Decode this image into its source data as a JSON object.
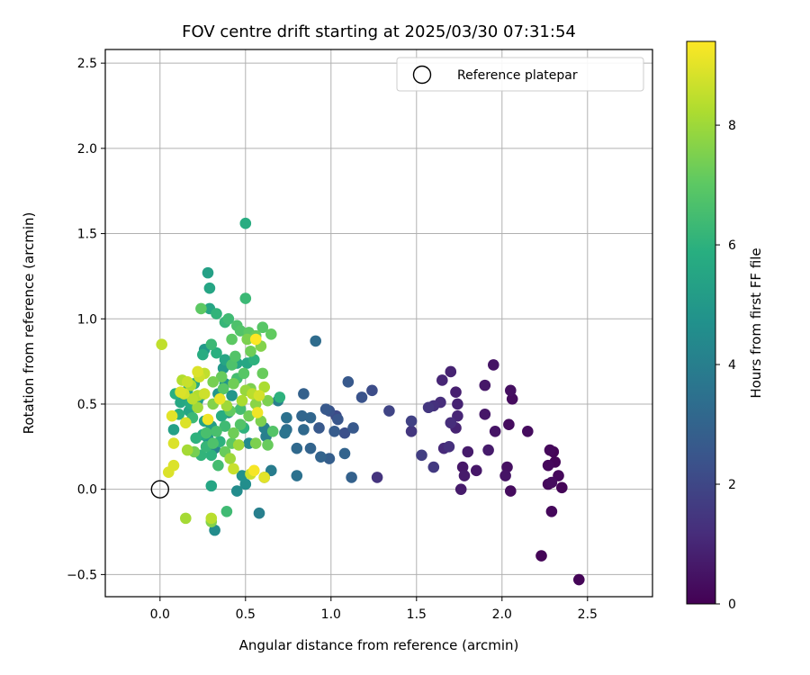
{
  "chart_data": {
    "type": "scatter",
    "title": "FOV centre drift starting at 2025/03/30 07:31:54",
    "xlabel": "Angular distance from reference (arcmin)",
    "ylabel": "Rotation from reference (arcmin)",
    "xlim": [
      -0.32,
      2.88
    ],
    "ylim": [
      -0.63,
      2.58
    ],
    "xticks": [
      "0.0",
      "0.5",
      "1.0",
      "1.5",
      "2.0",
      "2.5"
    ],
    "yticks": [
      "−0.5",
      "0.0",
      "0.5",
      "1.0",
      "1.5",
      "2.0",
      "2.5"
    ],
    "grid": true,
    "legend": {
      "placement": "top-right",
      "entries": [
        "Reference platepar"
      ]
    },
    "reference_point": {
      "x": 0.0,
      "y": 0.0
    },
    "colorbar": {
      "label": "Hours from first FF file",
      "colormap": "viridis",
      "range": [
        0,
        9.4
      ],
      "ticks": [
        "0",
        "2",
        "4",
        "6",
        "8"
      ]
    },
    "points": [
      [
        2.45,
        -0.53,
        0.1
      ],
      [
        2.23,
        -0.39,
        0.1
      ],
      [
        2.29,
        -0.13,
        0.2
      ],
      [
        2.35,
        0.01,
        0.1
      ],
      [
        2.33,
        0.08,
        0.2
      ],
      [
        2.29,
        0.04,
        0.3
      ],
      [
        2.27,
        0.03,
        0.2
      ],
      [
        2.31,
        0.16,
        0.1
      ],
      [
        2.27,
        0.14,
        0.2
      ],
      [
        2.3,
        0.22,
        0.1
      ],
      [
        2.28,
        0.23,
        0.2
      ],
      [
        2.05,
        -0.01,
        0.3
      ],
      [
        2.02,
        0.08,
        0.5
      ],
      [
        2.03,
        0.13,
        0.4
      ],
      [
        2.15,
        0.34,
        0.3
      ],
      [
        2.04,
        0.38,
        0.3
      ],
      [
        2.06,
        0.53,
        0.3
      ],
      [
        2.05,
        0.58,
        0.4
      ],
      [
        1.95,
        0.73,
        0.5
      ],
      [
        1.9,
        0.61,
        0.6
      ],
      [
        1.9,
        0.44,
        0.6
      ],
      [
        1.96,
        0.34,
        0.5
      ],
      [
        1.92,
        0.23,
        0.7
      ],
      [
        1.85,
        0.11,
        0.6
      ],
      [
        1.78,
        0.08,
        0.7
      ],
      [
        1.77,
        0.13,
        0.6
      ],
      [
        1.76,
        0.0,
        0.7
      ],
      [
        1.8,
        0.22,
        0.7
      ],
      [
        1.73,
        0.36,
        0.9
      ],
      [
        1.74,
        0.43,
        1.0
      ],
      [
        1.74,
        0.5,
        0.9
      ],
      [
        1.73,
        0.57,
        0.8
      ],
      [
        1.7,
        0.69,
        0.9
      ],
      [
        1.65,
        0.64,
        1.0
      ],
      [
        1.7,
        0.39,
        1.2
      ],
      [
        1.66,
        0.24,
        1.1
      ],
      [
        1.69,
        0.25,
        1.3
      ],
      [
        1.64,
        0.51,
        1.2
      ],
      [
        1.6,
        0.49,
        1.3
      ],
      [
        1.57,
        0.48,
        1.5
      ],
      [
        1.6,
        0.13,
        1.6
      ],
      [
        1.53,
        0.2,
        1.7
      ],
      [
        1.47,
        0.34,
        1.5
      ],
      [
        1.47,
        0.4,
        1.8
      ],
      [
        1.34,
        0.46,
        1.9
      ],
      [
        1.27,
        0.07,
        1.4
      ],
      [
        1.24,
        0.58,
        2.2
      ],
      [
        1.18,
        0.54,
        2.4
      ],
      [
        1.13,
        0.36,
        2.6
      ],
      [
        1.12,
        0.07,
        2.9
      ],
      [
        1.1,
        0.63,
        2.6
      ],
      [
        1.08,
        0.33,
        2.3
      ],
      [
        1.08,
        0.21,
        3.0
      ],
      [
        1.04,
        0.41,
        2.5
      ],
      [
        1.03,
        0.43,
        2.1
      ],
      [
        1.02,
        0.34,
        2.7
      ],
      [
        0.99,
        0.46,
        2.4
      ],
      [
        0.99,
        0.18,
        2.8
      ],
      [
        0.97,
        0.47,
        2.6
      ],
      [
        0.94,
        0.19,
        3.0
      ],
      [
        0.93,
        0.36,
        2.6
      ],
      [
        0.91,
        0.87,
        3.3
      ],
      [
        0.88,
        0.24,
        3.0
      ],
      [
        0.88,
        0.42,
        3.1
      ],
      [
        0.84,
        0.56,
        2.9
      ],
      [
        0.84,
        0.35,
        3.2
      ],
      [
        0.83,
        0.43,
        3.1
      ],
      [
        0.8,
        0.08,
        3.5
      ],
      [
        0.8,
        0.24,
        3.2
      ],
      [
        0.74,
        0.42,
        3.5
      ],
      [
        0.74,
        0.35,
        3.4
      ],
      [
        0.73,
        0.33,
        3.6
      ],
      [
        0.69,
        0.52,
        4.0
      ],
      [
        0.65,
        0.11,
        3.9
      ],
      [
        0.62,
        0.31,
        4.0
      ],
      [
        0.61,
        0.07,
        3.7
      ],
      [
        0.61,
        0.07,
        9.0
      ],
      [
        0.61,
        0.36,
        4.1
      ],
      [
        0.58,
        -0.14,
        4.0
      ],
      [
        0.57,
        0.45,
        9.2
      ],
      [
        0.55,
        0.11,
        9.3
      ],
      [
        0.52,
        0.27,
        4.5
      ],
      [
        0.5,
        0.03,
        4.6
      ],
      [
        0.48,
        0.08,
        4.7
      ],
      [
        0.45,
        -0.01,
        4.5
      ],
      [
        0.42,
        0.55,
        4.9
      ],
      [
        0.4,
        0.45,
        4.8
      ],
      [
        0.38,
        0.62,
        4.9
      ],
      [
        0.37,
        0.71,
        5.0
      ],
      [
        0.34,
        0.56,
        4.9
      ],
      [
        0.32,
        0.24,
        4.2
      ],
      [
        0.3,
        0.37,
        5.2
      ],
      [
        0.28,
        0.3,
        5.0
      ],
      [
        0.26,
        0.4,
        5.4
      ],
      [
        0.24,
        0.55,
        5.5
      ],
      [
        0.22,
        0.52,
        5.1
      ],
      [
        0.2,
        0.62,
        5.6
      ],
      [
        0.18,
        0.5,
        5.8
      ],
      [
        0.17,
        0.46,
        5.5
      ],
      [
        0.16,
        0.58,
        5.7
      ],
      [
        0.14,
        0.55,
        5.4
      ],
      [
        0.12,
        0.51,
        5.6
      ],
      [
        0.11,
        0.44,
        5.9
      ],
      [
        0.09,
        0.56,
        5.9
      ],
      [
        0.08,
        0.35,
        5.3
      ],
      [
        0.5,
        1.56,
        5.8
      ],
      [
        0.5,
        1.12,
        6.3
      ],
      [
        0.28,
        1.27,
        5.3
      ],
      [
        0.29,
        1.18,
        5.5
      ],
      [
        0.29,
        1.06,
        5.5
      ],
      [
        0.24,
        1.06,
        7.0
      ],
      [
        0.33,
        1.03,
        6.1
      ],
      [
        0.4,
        1.0,
        6.4
      ],
      [
        0.38,
        0.98,
        6.2
      ],
      [
        0.45,
        0.96,
        6.7
      ],
      [
        0.47,
        0.93,
        6.8
      ],
      [
        0.52,
        0.92,
        7.0
      ],
      [
        0.6,
        0.95,
        6.9
      ],
      [
        0.65,
        0.91,
        7.1
      ],
      [
        0.56,
        0.9,
        7.2
      ],
      [
        0.42,
        0.88,
        7.0
      ],
      [
        0.3,
        0.85,
        6.3
      ],
      [
        0.26,
        0.82,
        5.0
      ],
      [
        0.33,
        0.8,
        5.9
      ],
      [
        0.25,
        0.79,
        5.8
      ],
      [
        0.38,
        0.76,
        5.5
      ],
      [
        0.45,
        0.74,
        5.5
      ],
      [
        0.51,
        0.74,
        5.6
      ],
      [
        0.55,
        0.76,
        6.0
      ],
      [
        0.6,
        0.68,
        7.2
      ],
      [
        0.49,
        0.68,
        6.9
      ],
      [
        0.36,
        0.66,
        7.2
      ],
      [
        0.31,
        0.63,
        7.4
      ],
      [
        0.43,
        0.62,
        7.3
      ],
      [
        0.53,
        0.59,
        7.5
      ],
      [
        0.61,
        0.6,
        8.2
      ],
      [
        0.63,
        0.52,
        7.5
      ],
      [
        0.56,
        0.5,
        7.7
      ],
      [
        0.47,
        0.47,
        6.5
      ],
      [
        0.41,
        0.46,
        7.1
      ],
      [
        0.52,
        0.43,
        7.3
      ],
      [
        0.59,
        0.4,
        7.5
      ],
      [
        0.47,
        0.38,
        6.8
      ],
      [
        0.43,
        0.33,
        7.3
      ],
      [
        0.38,
        0.37,
        6.4
      ],
      [
        0.35,
        0.28,
        6.0
      ],
      [
        0.33,
        0.34,
        6.6
      ],
      [
        0.31,
        0.27,
        6.7
      ],
      [
        0.27,
        0.25,
        6.2
      ],
      [
        0.24,
        0.2,
        6.1
      ],
      [
        0.2,
        0.22,
        7.4
      ],
      [
        0.16,
        0.23,
        8.1
      ],
      [
        0.21,
        0.3,
        6.0
      ],
      [
        0.25,
        0.32,
        5.7
      ],
      [
        0.3,
        0.2,
        6.0
      ],
      [
        0.38,
        0.22,
        7.2
      ],
      [
        0.41,
        0.18,
        8.0
      ],
      [
        0.46,
        0.26,
        8.0
      ],
      [
        0.56,
        0.27,
        7.5
      ],
      [
        0.63,
        0.26,
        7.2
      ],
      [
        0.42,
        0.73,
        6.7
      ],
      [
        0.44,
        0.78,
        6.8
      ],
      [
        0.53,
        0.81,
        7.3
      ],
      [
        0.51,
        0.88,
        7.5
      ],
      [
        0.56,
        0.88,
        9.4
      ],
      [
        0.59,
        0.84,
        7.6
      ],
      [
        0.54,
        0.56,
        8.4
      ],
      [
        0.58,
        0.55,
        8.8
      ],
      [
        0.5,
        0.58,
        7.9
      ],
      [
        0.28,
        0.41,
        9.2
      ],
      [
        0.26,
        0.68,
        8.5
      ],
      [
        0.23,
        0.66,
        8.7
      ],
      [
        0.22,
        0.69,
        8.9
      ],
      [
        0.18,
        0.61,
        8.2
      ],
      [
        0.16,
        0.63,
        8.6
      ],
      [
        0.13,
        0.64,
        8.3
      ],
      [
        0.12,
        0.57,
        8.9
      ],
      [
        0.14,
        0.56,
        8.8
      ],
      [
        0.19,
        0.53,
        8.4
      ],
      [
        0.22,
        0.55,
        8.3
      ],
      [
        0.26,
        0.56,
        8.7
      ],
      [
        0.31,
        0.5,
        7.6
      ],
      [
        0.35,
        0.53,
        9.1
      ],
      [
        0.39,
        0.49,
        8.0
      ],
      [
        0.22,
        0.48,
        8.0
      ],
      [
        0.15,
        0.39,
        8.9
      ],
      [
        0.07,
        0.43,
        9.0
      ],
      [
        0.08,
        0.27,
        8.9
      ],
      [
        0.08,
        0.14,
        8.9
      ],
      [
        0.05,
        0.1,
        8.9
      ],
      [
        0.01,
        0.85,
        8.5
      ],
      [
        0.15,
        -0.17,
        8.1
      ],
      [
        0.3,
        -0.17,
        8.4
      ],
      [
        0.3,
        -0.19,
        7.6
      ],
      [
        0.39,
        -0.13,
        6.4
      ],
      [
        0.32,
        -0.24,
        4.5
      ],
      [
        0.3,
        0.02,
        5.5
      ],
      [
        0.43,
        0.12,
        8.6
      ],
      [
        0.53,
        0.09,
        8.7
      ],
      [
        0.66,
        0.34,
        6.8
      ],
      [
        0.7,
        0.54,
        6.0
      ],
      [
        0.45,
        0.65,
        6.5
      ],
      [
        0.36,
        0.43,
        5.8
      ],
      [
        0.49,
        0.36,
        6.0
      ],
      [
        0.42,
        0.27,
        7.0
      ],
      [
        0.34,
        0.14,
        6.5
      ],
      [
        0.27,
        0.33,
        6.6
      ],
      [
        0.19,
        0.42,
        6.3
      ],
      [
        0.48,
        0.52,
        8.2
      ],
      [
        0.37,
        0.59,
        6.9
      ]
    ]
  }
}
